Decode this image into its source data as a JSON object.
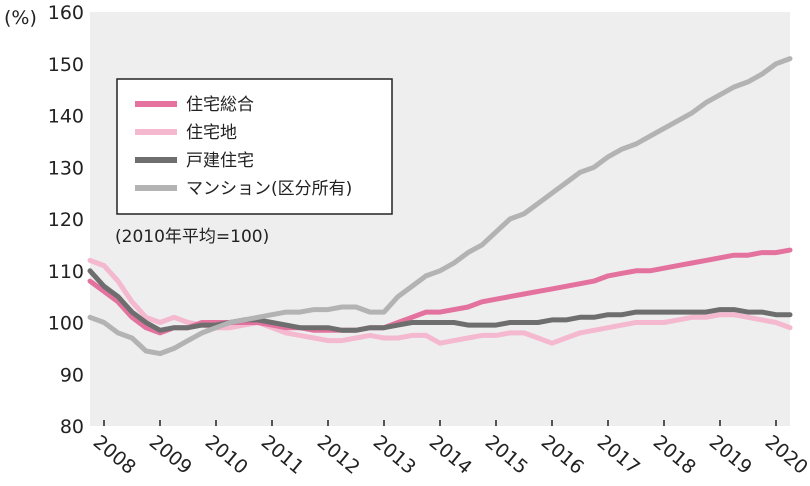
{
  "chart_data": {
    "type": "line",
    "ylabel": "(%)",
    "ylim": [
      80,
      160
    ],
    "y_ticks": [
      "160",
      "150",
      "140",
      "130",
      "120",
      "110",
      "100",
      "90",
      "80"
    ],
    "xlim": [
      2007.75,
      2020.25
    ],
    "x_ticks": [
      "2008",
      "2009",
      "2010",
      "2011",
      "2012",
      "2013",
      "2014",
      "2015",
      "2016",
      "2017",
      "2018",
      "2019",
      "2020"
    ],
    "grid": false,
    "legend_position": "top-left",
    "note": "(2010年平均=100)",
    "series": [
      {
        "name": "住宅総合",
        "color": "#e4729e",
        "x": [
          2007.75,
          2008.0,
          2008.25,
          2008.5,
          2008.75,
          2009.0,
          2009.25,
          2009.5,
          2009.75,
          2010.0,
          2010.25,
          2010.5,
          2010.75,
          2011.0,
          2011.25,
          2011.5,
          2011.75,
          2012.0,
          2012.25,
          2012.5,
          2012.75,
          2013.0,
          2013.25,
          2013.5,
          2013.75,
          2014.0,
          2014.25,
          2014.5,
          2014.75,
          2015.0,
          2015.25,
          2015.5,
          2015.75,
          2016.0,
          2016.25,
          2016.5,
          2016.75,
          2017.0,
          2017.25,
          2017.5,
          2017.75,
          2018.0,
          2018.25,
          2018.5,
          2018.75,
          2019.0,
          2019.25,
          2019.5,
          2019.75,
          2020.0,
          2020.25
        ],
        "y": [
          108,
          106,
          104,
          101,
          99,
          98,
          99,
          99,
          100,
          100,
          100,
          100,
          100,
          99.5,
          99,
          99,
          98.5,
          98.5,
          98.5,
          98.5,
          99,
          99,
          100,
          101,
          102,
          102,
          102.5,
          103,
          104,
          104.5,
          105,
          105.5,
          106,
          106.5,
          107,
          107.5,
          108,
          109,
          109.5,
          110,
          110,
          110.5,
          111,
          111.5,
          112,
          112.5,
          113,
          113,
          113.5,
          113.5,
          114
        ]
      },
      {
        "name": "住宅地",
        "color": "#f4b8cf",
        "x": [
          2007.75,
          2008.0,
          2008.25,
          2008.5,
          2008.75,
          2009.0,
          2009.25,
          2009.5,
          2009.75,
          2010.0,
          2010.25,
          2010.5,
          2010.75,
          2011.0,
          2011.25,
          2011.5,
          2011.75,
          2012.0,
          2012.25,
          2012.5,
          2012.75,
          2013.0,
          2013.25,
          2013.5,
          2013.75,
          2014.0,
          2014.25,
          2014.5,
          2014.75,
          2015.0,
          2015.25,
          2015.5,
          2015.75,
          2016.0,
          2016.25,
          2016.5,
          2016.75,
          2017.0,
          2017.25,
          2017.5,
          2017.75,
          2018.0,
          2018.25,
          2018.5,
          2018.75,
          2019.0,
          2019.25,
          2019.5,
          2019.75,
          2020.0,
          2020.25
        ],
        "y": [
          112,
          111,
          108,
          104,
          101,
          100,
          101,
          100,
          99.5,
          99,
          99,
          99.5,
          100,
          99,
          98,
          97.5,
          97,
          96.5,
          96.5,
          97,
          97.5,
          97,
          97,
          97.5,
          97.5,
          96,
          96.5,
          97,
          97.5,
          97.5,
          98,
          98,
          97,
          96,
          97,
          98,
          98.5,
          99,
          99.5,
          100,
          100,
          100,
          100.5,
          101,
          101,
          101.5,
          101.5,
          101,
          100.5,
          100,
          99
        ]
      },
      {
        "name": "戸建住宅",
        "color": "#6e6e6e",
        "x": [
          2007.75,
          2008.0,
          2008.25,
          2008.5,
          2008.75,
          2009.0,
          2009.25,
          2009.5,
          2009.75,
          2010.0,
          2010.25,
          2010.5,
          2010.75,
          2011.0,
          2011.25,
          2011.5,
          2011.75,
          2012.0,
          2012.25,
          2012.5,
          2012.75,
          2013.0,
          2013.25,
          2013.5,
          2013.75,
          2014.0,
          2014.25,
          2014.5,
          2014.75,
          2015.0,
          2015.25,
          2015.5,
          2015.75,
          2016.0,
          2016.25,
          2016.5,
          2016.75,
          2017.0,
          2017.25,
          2017.5,
          2017.75,
          2018.0,
          2018.25,
          2018.5,
          2018.75,
          2019.0,
          2019.25,
          2019.5,
          2019.75,
          2020.0,
          2020.25
        ],
        "y": [
          110,
          107,
          105,
          102,
          100,
          98.5,
          99,
          99,
          99.5,
          99.5,
          100,
          100.5,
          100.5,
          100,
          99.5,
          99,
          99,
          99,
          98.5,
          98.5,
          99,
          99,
          99.5,
          100,
          100,
          100,
          100,
          99.5,
          99.5,
          99.5,
          100,
          100,
          100,
          100.5,
          100.5,
          101,
          101,
          101.5,
          101.5,
          102,
          102,
          102,
          102,
          102,
          102,
          102.5,
          102.5,
          102,
          102,
          101.5,
          101.5
        ]
      },
      {
        "name": "マンション(区分所有)",
        "color": "#b3b3b3",
        "x": [
          2007.75,
          2008.0,
          2008.25,
          2008.5,
          2008.75,
          2009.0,
          2009.25,
          2009.5,
          2009.75,
          2010.0,
          2010.25,
          2010.5,
          2010.75,
          2011.0,
          2011.25,
          2011.5,
          2011.75,
          2012.0,
          2012.25,
          2012.5,
          2012.75,
          2013.0,
          2013.25,
          2013.5,
          2013.75,
          2014.0,
          2014.25,
          2014.5,
          2014.75,
          2015.0,
          2015.25,
          2015.5,
          2015.75,
          2016.0,
          2016.25,
          2016.5,
          2016.75,
          2017.0,
          2017.25,
          2017.5,
          2017.75,
          2018.0,
          2018.25,
          2018.5,
          2018.75,
          2019.0,
          2019.25,
          2019.5,
          2019.75,
          2020.0,
          2020.25
        ],
        "y": [
          101,
          100,
          98,
          97,
          94.5,
          94,
          95,
          96.5,
          98,
          99,
          100,
          100.5,
          101,
          101.5,
          102,
          102,
          102.5,
          102.5,
          103,
          103,
          102,
          102,
          105,
          107,
          109,
          110,
          111.5,
          113.5,
          115,
          117.5,
          120,
          121,
          123,
          125,
          127,
          129,
          130,
          132,
          133.5,
          134.5,
          136,
          137.5,
          139,
          140.5,
          142.5,
          144,
          145.5,
          146.5,
          148,
          150,
          151
        ]
      }
    ]
  }
}
